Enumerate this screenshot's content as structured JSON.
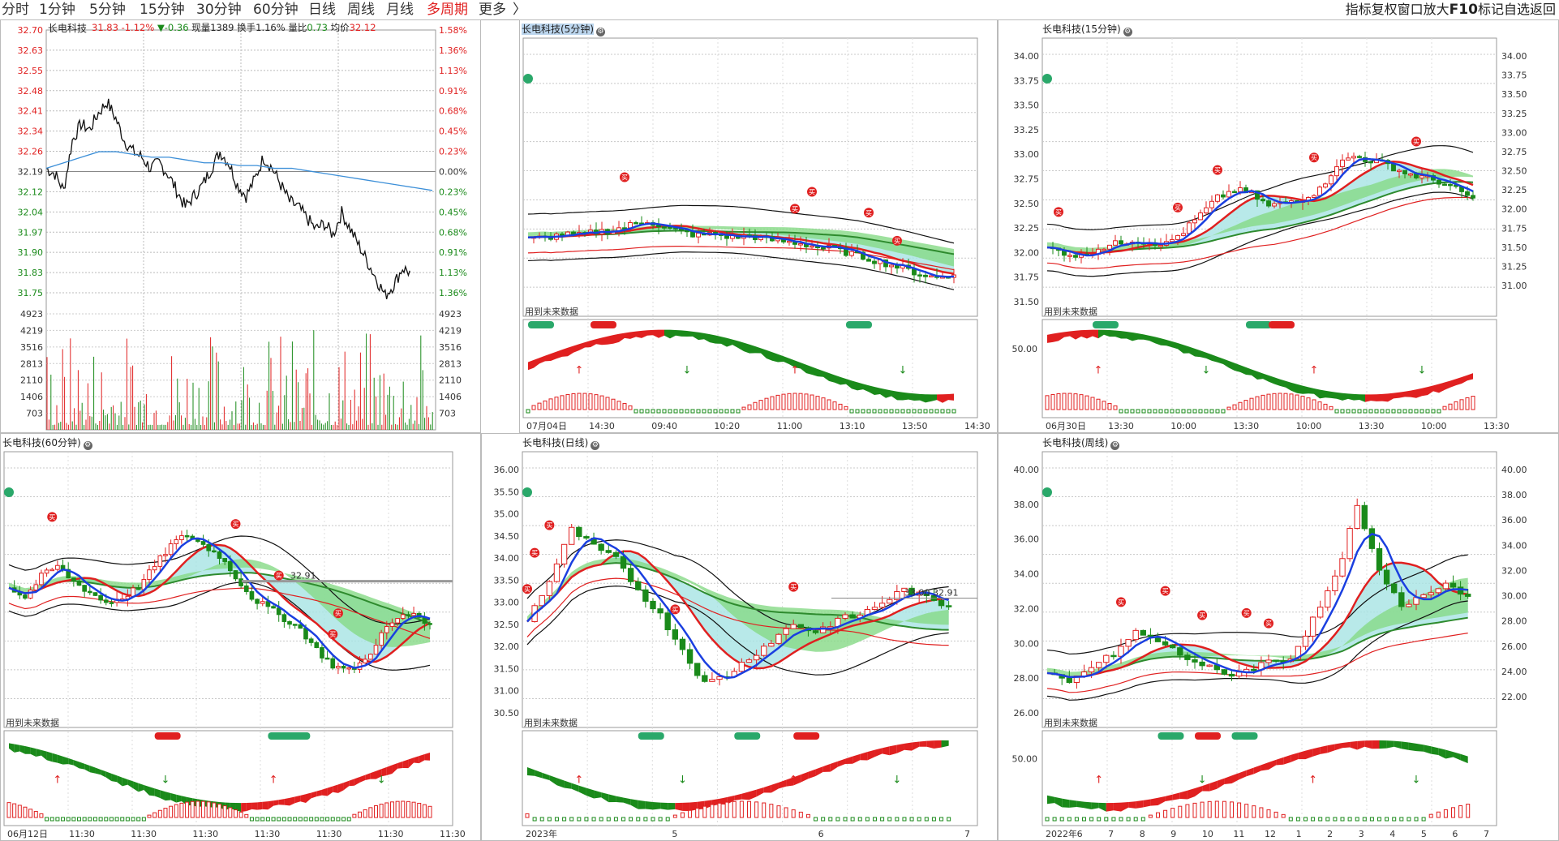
{
  "toolbar": {
    "periods": [
      {
        "label": "分时",
        "active": false
      },
      {
        "label": "1分钟",
        "active": false
      },
      {
        "label": "5分钟",
        "active": false
      },
      {
        "label": "15分钟",
        "active": false
      },
      {
        "label": "30分钟",
        "active": false
      },
      {
        "label": "60分钟",
        "active": false
      },
      {
        "label": "日线",
        "active": false
      },
      {
        "label": "周线",
        "active": false
      },
      {
        "label": "月线",
        "active": false
      },
      {
        "label": "多周期",
        "active": true
      },
      {
        "label": "更多",
        "active": false
      }
    ],
    "more_arrow": "〉",
    "right_tools": [
      "指标",
      "复权",
      "窗口",
      "放大",
      "F10",
      "标记",
      "自选",
      "返回"
    ]
  },
  "colors": {
    "up": "#e02020",
    "down": "#1a8a1a",
    "blue": "#1a3fe0",
    "cyan": "#a6e3e3",
    "green_band": "#86d986"
  },
  "intraday": {
    "title": "长电科技",
    "quote": {
      "price": "31.83",
      "pct": "-1.12%",
      "chg": "▼-0.36",
      "vol_label": "现量",
      "vol": "1389",
      "turn_label": "换手",
      "turn": "1.16%",
      "ratio_label": "量比",
      "ratio": "0.73",
      "avg_label": "均价",
      "avg": "32.12"
    },
    "left_axis": [
      "32.70",
      "32.63",
      "32.55",
      "32.48",
      "32.41",
      "32.34",
      "32.26",
      "32.19",
      "32.12",
      "32.04",
      "31.97",
      "31.90",
      "31.83",
      "31.75"
    ],
    "right_axis": [
      "1.58%",
      "1.36%",
      "1.13%",
      "0.91%",
      "0.68%",
      "0.45%",
      "0.23%",
      "0.00%",
      "0.23%",
      "0.45%",
      "0.68%",
      "0.91%",
      "1.13%",
      "1.36%"
    ],
    "vol_axis": [
      "4923",
      "4219",
      "3516",
      "2813",
      "2110",
      "1406",
      "703"
    ],
    "price": [
      32.2,
      32.18,
      32.12,
      32.3,
      32.36,
      32.34,
      32.4,
      32.44,
      32.38,
      32.3,
      32.26,
      32.24,
      32.2,
      32.22,
      32.18,
      32.12,
      32.06,
      32.1,
      32.14,
      32.2,
      32.26,
      32.22,
      32.14,
      32.1,
      32.16,
      32.24,
      32.2,
      32.14,
      32.08,
      32.06,
      32.02,
      31.98,
      32.0,
      31.96,
      32.04,
      31.98,
      31.92,
      31.86,
      31.8,
      31.74,
      31.78,
      31.84,
      31.82
    ],
    "avg_line": [
      32.2,
      32.22,
      32.24,
      32.26,
      32.26,
      32.25,
      32.24,
      32.24,
      32.23,
      32.22,
      32.22,
      32.21,
      32.21,
      32.2,
      32.2,
      32.19,
      32.18,
      32.17,
      32.16,
      32.15,
      32.14,
      32.13,
      32.12
    ]
  },
  "panels": [
    {
      "id": "m5",
      "title": "长电科技(5分钟)",
      "future_note": "用到未来数据",
      "right_axis": [],
      "x_labels": [
        "07月04日",
        "14:30",
        "09:40",
        "10:20",
        "11:00",
        "13:10",
        "13:50",
        "14:30"
      ],
      "closes": [
        32.2,
        32.22,
        32.25,
        32.24,
        32.28,
        32.3,
        32.35,
        32.4,
        32.32,
        32.28,
        32.24,
        32.26,
        32.22,
        32.24,
        32.2,
        32.18,
        32.16,
        32.12,
        32.1,
        32.05,
        32.0,
        31.95,
        31.9,
        31.84,
        31.8,
        31.83
      ],
      "price_range": [
        31.5,
        34.2
      ]
    },
    {
      "id": "m15",
      "title": "长电科技(15分钟)",
      "future_note": "用到未来数据",
      "right_axis": [
        "34.00",
        "33.75",
        "33.50",
        "33.25",
        "33.00",
        "32.75",
        "32.50",
        "32.25",
        "32.00",
        "31.75",
        "31.50",
        "31.25",
        "31.00"
      ],
      "left_axis": [
        "34.00",
        "33.75",
        "33.50",
        "33.25",
        "33.00",
        "32.75",
        "32.50",
        "32.25",
        "32.00",
        "31.75",
        "31.50"
      ],
      "osc_label": "50.00",
      "x_labels": [
        "06月30日",
        "13:30",
        "10:00",
        "13:30",
        "10:00",
        "13:30",
        "10:00",
        "13:30"
      ],
      "closes": [
        31.7,
        31.65,
        31.6,
        31.7,
        31.75,
        31.8,
        31.78,
        31.75,
        31.9,
        32.1,
        32.3,
        32.4,
        32.35,
        32.2,
        32.25,
        32.3,
        32.4,
        32.7,
        32.8,
        32.75,
        32.7,
        32.6,
        32.55,
        32.5,
        32.4,
        32.3
      ],
      "price_range": [
        31.0,
        34.1
      ]
    },
    {
      "id": "m60",
      "title": "长电科技(60分钟)",
      "future_note": "用到未来数据",
      "right_axis": [],
      "annot": "32.91",
      "x_labels": [
        "06月12日",
        "11:30",
        "11:30",
        "11:30",
        "11:30",
        "11:30",
        "11:30",
        "11:30"
      ],
      "closes": [
        32.8,
        32.6,
        33.0,
        33.2,
        32.9,
        32.7,
        32.5,
        32.6,
        32.8,
        33.2,
        33.6,
        33.8,
        33.6,
        33.4,
        33.0,
        32.6,
        32.4,
        32.2,
        32.0,
        31.6,
        31.3,
        31.2,
        31.4,
        31.9,
        32.2,
        32.3,
        32.1
      ],
      "price_range": [
        30.3,
        35.2
      ]
    },
    {
      "id": "d1",
      "title": "长电科技(日线)",
      "future_note": "用到未来数据",
      "left_axis": [
        "36.00",
        "35.50",
        "35.00",
        "34.50",
        "34.00",
        "33.50",
        "33.00",
        "32.50",
        "32.00",
        "31.50",
        "31.00",
        "30.50"
      ],
      "annot_left": "33.00",
      "annot_right": "32.91",
      "x_labels": [
        "2023年",
        "5",
        "6",
        "7"
      ],
      "closes": [
        32.5,
        33.4,
        34.6,
        34.2,
        33.9,
        33.2,
        32.6,
        31.8,
        31.0,
        31.2,
        31.6,
        32.0,
        32.4,
        32.2,
        32.5,
        32.6,
        32.9,
        33.2,
        33.0,
        32.8
      ],
      "price_range": [
        30.2,
        36.2
      ]
    },
    {
      "id": "w1",
      "title": "长电科技(周线)",
      "future_note": "用到未来数据",
      "left_axis": [
        "40.00",
        "38.00",
        "36.00",
        "34.00",
        "32.00",
        "30.00",
        "28.00",
        "26.00"
      ],
      "right_axis": [
        "40.00",
        "38.00",
        "36.00",
        "34.00",
        "32.00",
        "30.00",
        "28.00",
        "26.00",
        "24.00",
        "22.00"
      ],
      "osc_label": "50.00",
      "x_labels": [
        "2022年",
        "6",
        "7",
        "8",
        "9",
        "10",
        "11",
        "12",
        "1",
        "2",
        "3",
        "4",
        "5",
        "6",
        "7"
      ],
      "closes": [
        28.0,
        27.5,
        28.5,
        29.2,
        30.5,
        30.0,
        29.2,
        28.6,
        28.0,
        28.3,
        28.8,
        29.0,
        31.2,
        33.6,
        37.8,
        34.0,
        32.0,
        32.8,
        33.4,
        32.6
      ],
      "price_range": [
        25.5,
        40.5
      ]
    }
  ]
}
